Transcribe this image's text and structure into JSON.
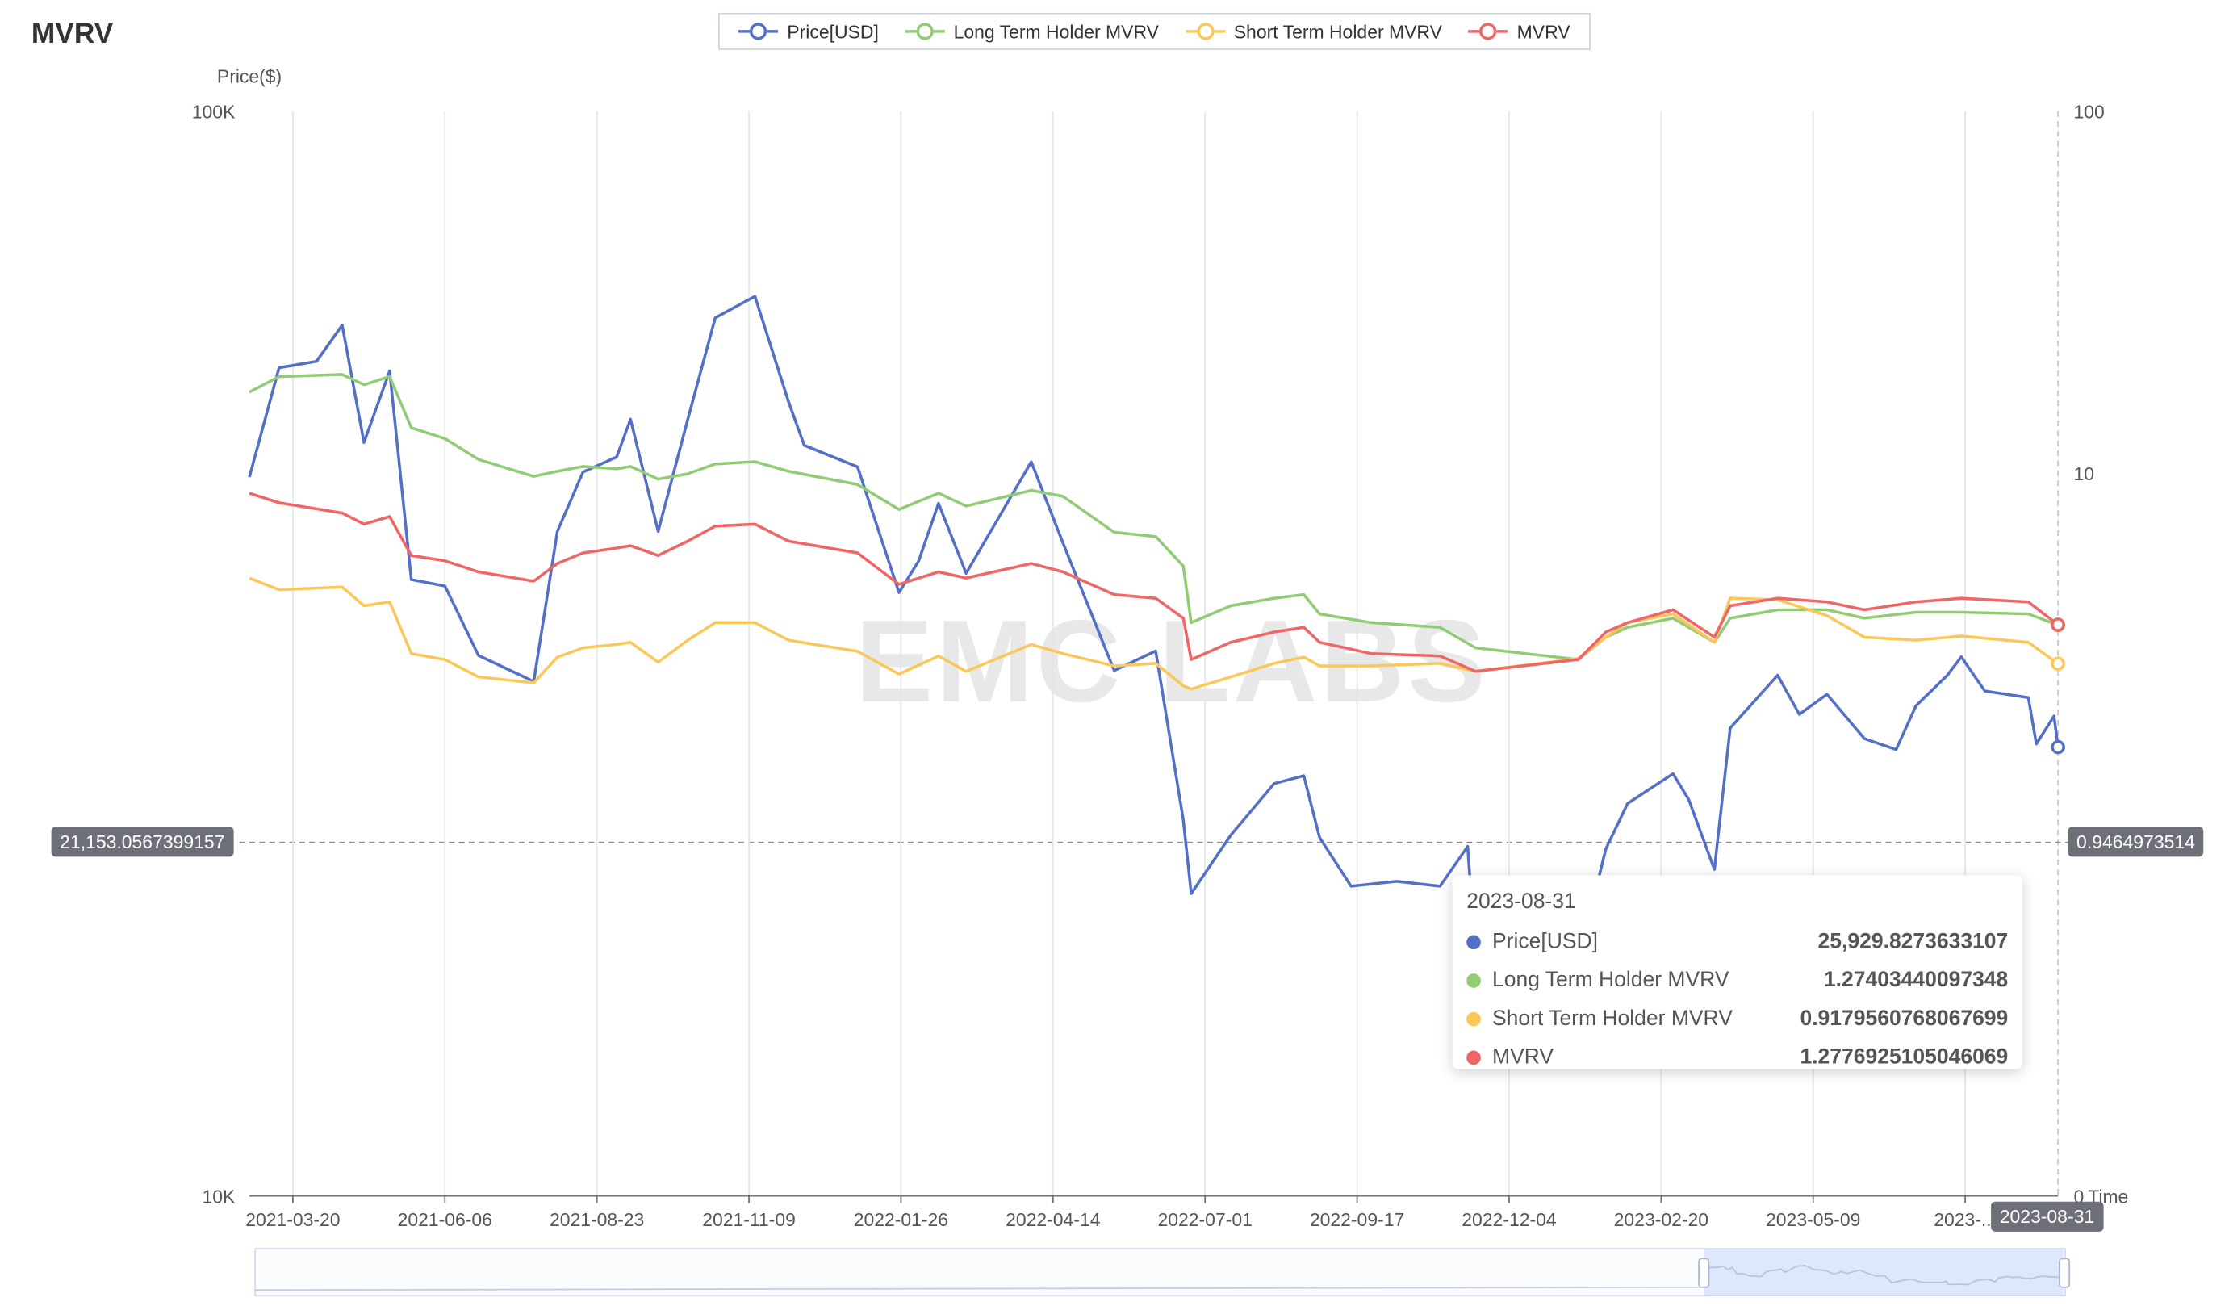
{
  "title": "MVRV",
  "watermark": "EMC LABS",
  "legend": [
    {
      "name": "Price[USD]",
      "color": "#5470c6"
    },
    {
      "name": "Long Term Holder MVRV",
      "color": "#91cc75"
    },
    {
      "name": "Short Term Holder MVRV",
      "color": "#fac858"
    },
    {
      "name": "MVRV",
      "color": "#ee6666"
    }
  ],
  "axes": {
    "left_name": "Price($)",
    "left_ticks": [
      "100K",
      "10K"
    ],
    "right_ticks": [
      "100",
      "10",
      "0"
    ],
    "x_name": "Time",
    "x_ticks": [
      "2021-03-20",
      "2021-06-06",
      "2021-08-23",
      "2021-11-09",
      "2022-01-26",
      "2022-04-14",
      "2022-07-01",
      "2022-09-17",
      "2022-12-04",
      "2023-02-20",
      "2023-05-09",
      "2023-..."
    ]
  },
  "pointer": {
    "left_value": "21,153.0567399157",
    "right_value": "0.9464973514",
    "x_value": "2023-08-31"
  },
  "tooltip": {
    "date": "2023-08-31",
    "rows": [
      {
        "name": "Price[USD]",
        "value": "25,929.8273633107",
        "color": "#5470c6"
      },
      {
        "name": "Long Term Holder MVRV",
        "value": "1.27403440097348",
        "color": "#91cc75"
      },
      {
        "name": "Short Term Holder MVRV",
        "value": "0.9179560768067699",
        "color": "#fac858"
      },
      {
        "name": "MVRV",
        "value": "1.2776925105046069",
        "color": "#ee6666"
      }
    ]
  },
  "chart_data": {
    "type": "line",
    "x_range": [
      "2021-02-26",
      "2023-08-31"
    ],
    "y_left": {
      "name": "Price($)",
      "scale": "log",
      "range": [
        10000,
        100000
      ]
    },
    "y_right": {
      "scale": "log",
      "range": [
        0.01,
        100
      ]
    },
    "grid": "vertical",
    "legend_position": "top-center",
    "series": [
      {
        "name": "Price[USD]",
        "axis": "left",
        "color": "#5470c6",
        "points": [
          [
            "2021-02-26",
            46000
          ],
          [
            "2021-03-13",
            58000
          ],
          [
            "2021-04-01",
            58800
          ],
          [
            "2021-04-14",
            63500
          ],
          [
            "2021-04-25",
            49500
          ],
          [
            "2021-05-08",
            57600
          ],
          [
            "2021-05-19",
            37000
          ],
          [
            "2021-06-05",
            36500
          ],
          [
            "2021-06-22",
            31500
          ],
          [
            "2021-07-20",
            29800
          ],
          [
            "2021-08-01",
            41000
          ],
          [
            "2021-08-14",
            46500
          ],
          [
            "2021-08-31",
            48000
          ],
          [
            "2021-09-07",
            52000
          ],
          [
            "2021-09-21",
            41000
          ],
          [
            "2021-10-06",
            52000
          ],
          [
            "2021-10-20",
            64500
          ],
          [
            "2021-11-09",
            67500
          ],
          [
            "2021-11-26",
            54000
          ],
          [
            "2021-12-04",
            49200
          ],
          [
            "2021-12-31",
            47000
          ],
          [
            "2022-01-21",
            36000
          ],
          [
            "2022-01-31",
            38500
          ],
          [
            "2022-02-10",
            43500
          ],
          [
            "2022-02-24",
            37500
          ],
          [
            "2022-03-29",
            47500
          ],
          [
            "2022-04-14",
            40000
          ],
          [
            "2022-05-10",
            30500
          ],
          [
            "2022-05-31",
            31800
          ],
          [
            "2022-06-14",
            22200
          ],
          [
            "2022-06-18",
            19000
          ],
          [
            "2022-07-08",
            21500
          ],
          [
            "2022-07-30",
            24000
          ],
          [
            "2022-08-14",
            24400
          ],
          [
            "2022-08-22",
            21400
          ],
          [
            "2022-09-07",
            19300
          ],
          [
            "2022-09-30",
            19500
          ],
          [
            "2022-10-22",
            19300
          ],
          [
            "2022-11-05",
            21000
          ],
          [
            "2022-11-09",
            16500
          ],
          [
            "2022-12-10",
            17100
          ],
          [
            "2022-12-31",
            16500
          ],
          [
            "2023-01-14",
            20900
          ],
          [
            "2023-01-25",
            23000
          ],
          [
            "2023-02-17",
            24500
          ],
          [
            "2023-02-25",
            23200
          ],
          [
            "2023-03-10",
            20000
          ],
          [
            "2023-03-18",
            27000
          ],
          [
            "2023-04-11",
            30200
          ],
          [
            "2023-04-22",
            27800
          ],
          [
            "2023-05-06",
            29000
          ],
          [
            "2023-05-25",
            26400
          ],
          [
            "2023-06-10",
            25800
          ],
          [
            "2023-06-20",
            28300
          ],
          [
            "2023-07-06",
            30200
          ],
          [
            "2023-07-13",
            31400
          ],
          [
            "2023-07-25",
            29200
          ],
          [
            "2023-08-16",
            28800
          ],
          [
            "2023-08-20",
            26100
          ],
          [
            "2023-08-29",
            27700
          ],
          [
            "2023-08-31",
            25929.8273633107
          ]
        ]
      },
      {
        "name": "Long Term Holder MVRV",
        "axis": "right",
        "color": "#91cc75",
        "points": [
          [
            "2021-02-26",
            9.2
          ],
          [
            "2021-03-13",
            10.5
          ],
          [
            "2021-04-14",
            10.7
          ],
          [
            "2021-04-25",
            9.8
          ],
          [
            "2021-05-08",
            10.5
          ],
          [
            "2021-05-19",
            6.8
          ],
          [
            "2021-06-05",
            6.2
          ],
          [
            "2021-06-22",
            5.2
          ],
          [
            "2021-07-20",
            4.5
          ],
          [
            "2021-08-01",
            4.7
          ],
          [
            "2021-08-14",
            4.9
          ],
          [
            "2021-08-31",
            4.8
          ],
          [
            "2021-09-07",
            4.9
          ],
          [
            "2021-09-21",
            4.4
          ],
          [
            "2021-10-06",
            4.6
          ],
          [
            "2021-10-20",
            5.0
          ],
          [
            "2021-11-09",
            5.1
          ],
          [
            "2021-11-26",
            4.7
          ],
          [
            "2021-12-31",
            4.2
          ],
          [
            "2022-01-21",
            3.4
          ],
          [
            "2022-02-10",
            3.9
          ],
          [
            "2022-02-24",
            3.5
          ],
          [
            "2022-03-29",
            4.0
          ],
          [
            "2022-04-14",
            3.8
          ],
          [
            "2022-05-10",
            2.8
          ],
          [
            "2022-05-31",
            2.7
          ],
          [
            "2022-06-14",
            2.1
          ],
          [
            "2022-06-18",
            1.3
          ],
          [
            "2022-07-08",
            1.5
          ],
          [
            "2022-07-30",
            1.6
          ],
          [
            "2022-08-14",
            1.65
          ],
          [
            "2022-08-22",
            1.4
          ],
          [
            "2022-09-17",
            1.3
          ],
          [
            "2022-10-22",
            1.25
          ],
          [
            "2022-11-09",
            1.05
          ],
          [
            "2022-12-31",
            0.95
          ],
          [
            "2023-01-14",
            1.15
          ],
          [
            "2023-01-25",
            1.25
          ],
          [
            "2023-02-17",
            1.35
          ],
          [
            "2023-03-10",
            1.1
          ],
          [
            "2023-03-18",
            1.35
          ],
          [
            "2023-04-11",
            1.45
          ],
          [
            "2023-05-06",
            1.45
          ],
          [
            "2023-05-25",
            1.35
          ],
          [
            "2023-06-20",
            1.42
          ],
          [
            "2023-07-13",
            1.42
          ],
          [
            "2023-08-16",
            1.4
          ],
          [
            "2023-08-31",
            1.27403440097348
          ]
        ]
      },
      {
        "name": "Short Term Holder MVRV",
        "axis": "right",
        "color": "#fac858",
        "points": [
          [
            "2021-02-26",
            1.9
          ],
          [
            "2021-03-13",
            1.72
          ],
          [
            "2021-04-14",
            1.76
          ],
          [
            "2021-04-25",
            1.5
          ],
          [
            "2021-05-08",
            1.55
          ],
          [
            "2021-05-19",
            1.0
          ],
          [
            "2021-06-05",
            0.95
          ],
          [
            "2021-06-22",
            0.82
          ],
          [
            "2021-07-20",
            0.78
          ],
          [
            "2021-08-01",
            0.97
          ],
          [
            "2021-08-14",
            1.05
          ],
          [
            "2021-08-31",
            1.08
          ],
          [
            "2021-09-07",
            1.1
          ],
          [
            "2021-09-21",
            0.93
          ],
          [
            "2021-10-06",
            1.12
          ],
          [
            "2021-10-20",
            1.3
          ],
          [
            "2021-11-09",
            1.3
          ],
          [
            "2021-11-26",
            1.12
          ],
          [
            "2021-12-31",
            1.02
          ],
          [
            "2022-01-21",
            0.84
          ],
          [
            "2022-02-10",
            0.98
          ],
          [
            "2022-02-24",
            0.86
          ],
          [
            "2022-03-29",
            1.08
          ],
          [
            "2022-04-14",
            1.0
          ],
          [
            "2022-05-10",
            0.9
          ],
          [
            "2022-05-31",
            0.92
          ],
          [
            "2022-06-14",
            0.76
          ],
          [
            "2022-06-18",
            0.74
          ],
          [
            "2022-07-08",
            0.82
          ],
          [
            "2022-07-30",
            0.92
          ],
          [
            "2022-08-14",
            0.97
          ],
          [
            "2022-08-22",
            0.9
          ],
          [
            "2022-09-17",
            0.9
          ],
          [
            "2022-10-22",
            0.92
          ],
          [
            "2022-11-09",
            0.86
          ],
          [
            "2022-12-31",
            0.96
          ],
          [
            "2023-01-14",
            1.15
          ],
          [
            "2023-01-25",
            1.3
          ],
          [
            "2023-02-17",
            1.4
          ],
          [
            "2023-03-10",
            1.1
          ],
          [
            "2023-03-18",
            1.6
          ],
          [
            "2023-04-11",
            1.58
          ],
          [
            "2023-05-06",
            1.38
          ],
          [
            "2023-05-25",
            1.15
          ],
          [
            "2023-06-20",
            1.12
          ],
          [
            "2023-07-13",
            1.16
          ],
          [
            "2023-08-16",
            1.1
          ],
          [
            "2023-08-31",
            0.9179560768067699
          ]
        ]
      },
      {
        "name": "MVRV",
        "axis": "right",
        "color": "#ee6666",
        "points": [
          [
            "2021-02-26",
            3.9
          ],
          [
            "2021-03-13",
            3.6
          ],
          [
            "2021-04-14",
            3.3
          ],
          [
            "2021-04-25",
            3.0
          ],
          [
            "2021-05-08",
            3.2
          ],
          [
            "2021-05-19",
            2.3
          ],
          [
            "2021-06-05",
            2.2
          ],
          [
            "2021-06-22",
            2.0
          ],
          [
            "2021-07-20",
            1.85
          ],
          [
            "2021-08-01",
            2.15
          ],
          [
            "2021-08-14",
            2.35
          ],
          [
            "2021-08-31",
            2.45
          ],
          [
            "2021-09-07",
            2.5
          ],
          [
            "2021-09-21",
            2.3
          ],
          [
            "2021-10-06",
            2.6
          ],
          [
            "2021-10-20",
            2.95
          ],
          [
            "2021-11-09",
            3.0
          ],
          [
            "2021-11-26",
            2.6
          ],
          [
            "2021-12-31",
            2.35
          ],
          [
            "2022-01-21",
            1.8
          ],
          [
            "2022-02-10",
            2.0
          ],
          [
            "2022-02-24",
            1.9
          ],
          [
            "2022-03-29",
            2.15
          ],
          [
            "2022-04-14",
            2.0
          ],
          [
            "2022-05-10",
            1.65
          ],
          [
            "2022-05-31",
            1.6
          ],
          [
            "2022-06-14",
            1.35
          ],
          [
            "2022-06-18",
            0.95
          ],
          [
            "2022-07-08",
            1.1
          ],
          [
            "2022-07-30",
            1.2
          ],
          [
            "2022-08-14",
            1.25
          ],
          [
            "2022-08-22",
            1.1
          ],
          [
            "2022-09-17",
            1.0
          ],
          [
            "2022-10-22",
            0.98
          ],
          [
            "2022-11-09",
            0.86
          ],
          [
            "2022-12-31",
            0.95
          ],
          [
            "2023-01-14",
            1.2
          ],
          [
            "2023-01-25",
            1.3
          ],
          [
            "2023-02-17",
            1.45
          ],
          [
            "2023-03-10",
            1.15
          ],
          [
            "2023-03-18",
            1.5
          ],
          [
            "2023-04-11",
            1.6
          ],
          [
            "2023-05-06",
            1.55
          ],
          [
            "2023-05-25",
            1.45
          ],
          [
            "2023-06-20",
            1.55
          ],
          [
            "2023-07-13",
            1.6
          ],
          [
            "2023-08-16",
            1.55
          ],
          [
            "2023-08-31",
            1.2776925105046069
          ]
        ]
      }
    ]
  }
}
